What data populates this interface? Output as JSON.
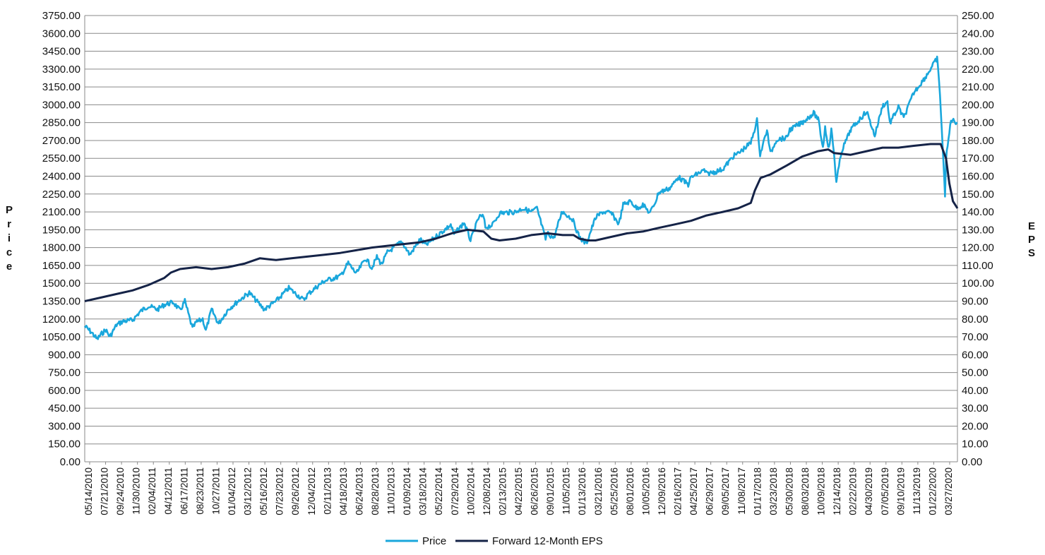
{
  "chart_data": {
    "type": "line",
    "title": "",
    "y_left": {
      "label_letters": [
        "P",
        "r",
        "i",
        "c",
        "e"
      ],
      "ylim": [
        0,
        3750
      ],
      "step": 150,
      "ticks": [
        "0.00",
        "150.00",
        "300.00",
        "450.00",
        "600.00",
        "750.00",
        "900.00",
        "1050.00",
        "1200.00",
        "1350.00",
        "1500.00",
        "1650.00",
        "1800.00",
        "1950.00",
        "2100.00",
        "2250.00",
        "2400.00",
        "2550.00",
        "2700.00",
        "2850.00",
        "3000.00",
        "3150.00",
        "3300.00",
        "3450.00",
        "3600.00",
        "3750.00"
      ]
    },
    "y_right": {
      "label_letters": [
        "E",
        "P",
        "S"
      ],
      "ylim": [
        0,
        250
      ],
      "step": 10,
      "ticks": [
        "0.00",
        "10.00",
        "20.00",
        "30.00",
        "40.00",
        "50.00",
        "60.00",
        "70.00",
        "80.00",
        "90.00",
        "100.00",
        "110.00",
        "120.00",
        "130.00",
        "140.00",
        "150.00",
        "160.00",
        "170.00",
        "180.00",
        "190.00",
        "200.00",
        "210.00",
        "220.00",
        "230.00",
        "240.00",
        "250.00"
      ]
    },
    "x_ticks": [
      "05/14/2010",
      "07/21/2010",
      "09/24/2010",
      "11/30/2010",
      "02/04/2011",
      "04/12/2011",
      "06/17/2011",
      "08/23/2011",
      "10/27/2011",
      "01/04/2012",
      "03/12/2012",
      "05/16/2012",
      "07/23/2012",
      "09/26/2012",
      "12/04/2012",
      "02/11/2013",
      "04/18/2013",
      "06/24/2013",
      "08/28/2013",
      "11/01/2013",
      "01/09/2014",
      "03/18/2014",
      "05/22/2014",
      "07/29/2014",
      "10/02/2014",
      "12/08/2014",
      "02/13/2015",
      "04/22/2015",
      "06/26/2015",
      "09/01/2015",
      "11/05/2015",
      "01/13/2016",
      "03/21/2016",
      "05/25/2016",
      "08/01/2016",
      "10/05/2016",
      "12/09/2016",
      "02/16/2017",
      "04/25/2017",
      "06/29/2017",
      "09/05/2017",
      "11/08/2017",
      "01/17/2018",
      "03/23/2018",
      "05/30/2018",
      "08/03/2018",
      "10/09/2018",
      "12/14/2018",
      "02/22/2019",
      "04/30/2019",
      "07/05/2019",
      "09/10/2019",
      "11/13/2019",
      "01/22/2020",
      "03/27/2020"
    ],
    "x_range": [
      "05/14/2010",
      "05/14/2020"
    ],
    "grid": true,
    "legend_position": "bottom-center",
    "series": [
      {
        "name": "Price",
        "axis": "left",
        "color": "#1aa7dc",
        "points": [
          [
            "05/14/2010",
            1140
          ],
          [
            "06/10/2010",
            1090
          ],
          [
            "07/05/2010",
            1030
          ],
          [
            "07/21/2010",
            1070
          ],
          [
            "08/10/2010",
            1110
          ],
          [
            "08/27/2010",
            1050
          ],
          [
            "09/24/2010",
            1150
          ],
          [
            "10/20/2010",
            1180
          ],
          [
            "11/30/2010",
            1190
          ],
          [
            "12/31/2010",
            1260
          ],
          [
            "02/04/2011",
            1310
          ],
          [
            "03/15/2011",
            1280
          ],
          [
            "04/12/2011",
            1320
          ],
          [
            "05/20/2011",
            1340
          ],
          [
            "06/17/2011",
            1270
          ],
          [
            "07/07/2011",
            1350
          ],
          [
            "08/08/2011",
            1120
          ],
          [
            "08/23/2011",
            1170
          ],
          [
            "09/20/2011",
            1200
          ],
          [
            "10/03/2011",
            1100
          ],
          [
            "10/27/2011",
            1280
          ],
          [
            "11/25/2011",
            1160
          ],
          [
            "01/04/2012",
            1280
          ],
          [
            "02/15/2012",
            1350
          ],
          [
            "03/12/2012",
            1390
          ],
          [
            "04/02/2012",
            1420
          ],
          [
            "05/16/2012",
            1320
          ],
          [
            "06/04/2012",
            1280
          ],
          [
            "07/23/2012",
            1350
          ],
          [
            "09/14/2012",
            1460
          ],
          [
            "09/26/2012",
            1440
          ],
          [
            "11/15/2012",
            1360
          ],
          [
            "12/04/2012",
            1410
          ],
          [
            "01/15/2013",
            1480
          ],
          [
            "02/11/2013",
            1520
          ],
          [
            "04/18/2013",
            1560
          ],
          [
            "05/21/2013",
            1670
          ],
          [
            "06/24/2013",
            1580
          ],
          [
            "08/02/2013",
            1710
          ],
          [
            "08/28/2013",
            1630
          ],
          [
            "09/18/2013",
            1720
          ],
          [
            "10/08/2013",
            1660
          ],
          [
            "11/01/2013",
            1760
          ],
          [
            "12/31/2013",
            1850
          ],
          [
            "02/03/2014",
            1740
          ],
          [
            "03/18/2014",
            1870
          ],
          [
            "04/11/2014",
            1820
          ],
          [
            "05/22/2014",
            1890
          ],
          [
            "07/24/2014",
            1990
          ],
          [
            "08/07/2014",
            1910
          ],
          [
            "09/18/2014",
            2010
          ],
          [
            "10/15/2014",
            1860
          ],
          [
            "11/20/2014",
            2060
          ],
          [
            "12/08/2014",
            2060
          ],
          [
            "12/16/2014",
            1970
          ],
          [
            "01/15/2015",
            1990
          ],
          [
            "02/13/2015",
            2090
          ],
          [
            "04/22/2015",
            2100
          ],
          [
            "05/21/2015",
            2130
          ],
          [
            "06/26/2015",
            2100
          ],
          [
            "07/20/2015",
            2130
          ],
          [
            "08/25/2015",
            1870
          ],
          [
            "09/01/2015",
            1920
          ],
          [
            "09/29/2015",
            1880
          ],
          [
            "11/03/2015",
            2110
          ],
          [
            "11/05/2015",
            2100
          ],
          [
            "12/15/2015",
            2040
          ],
          [
            "01/13/2016",
            1890
          ],
          [
            "02/11/2016",
            1830
          ],
          [
            "03/21/2016",
            2050
          ],
          [
            "04/20/2016",
            2100
          ],
          [
            "05/25/2016",
            2090
          ],
          [
            "06/27/2016",
            2000
          ],
          [
            "07/15/2016",
            2160
          ],
          [
            "08/15/2016",
            2190
          ],
          [
            "09/09/2016",
            2130
          ],
          [
            "10/05/2016",
            2160
          ],
          [
            "11/04/2016",
            2090
          ],
          [
            "11/30/2016",
            2200
          ],
          [
            "12/09/2016",
            2260
          ],
          [
            "01/26/2017",
            2300
          ],
          [
            "02/16/2017",
            2350
          ],
          [
            "03/01/2017",
            2395
          ],
          [
            "04/13/2017",
            2330
          ],
          [
            "04/25/2017",
            2390
          ],
          [
            "06/19/2017",
            2450
          ],
          [
            "06/29/2017",
            2420
          ],
          [
            "08/10/2017",
            2440
          ],
          [
            "09/05/2017",
            2460
          ],
          [
            "10/20/2017",
            2570
          ],
          [
            "11/08/2017",
            2590
          ],
          [
            "12/31/2017",
            2680
          ],
          [
            "01/26/2018",
            2870
          ],
          [
            "02/08/2018",
            2580
          ],
          [
            "03/09/2018",
            2790
          ],
          [
            "03/23/2018",
            2590
          ],
          [
            "04/18/2018",
            2710
          ],
          [
            "05/30/2018",
            2720
          ],
          [
            "06/12/2018",
            2790
          ],
          [
            "08/03/2018",
            2850
          ],
          [
            "09/20/2018",
            2930
          ],
          [
            "10/09/2018",
            2880
          ],
          [
            "10/29/2018",
            2640
          ],
          [
            "11/07/2018",
            2810
          ],
          [
            "11/23/2018",
            2630
          ],
          [
            "12/03/2018",
            2790
          ],
          [
            "12/14/2018",
            2600
          ],
          [
            "12/24/2018",
            2350
          ],
          [
            "01/15/2019",
            2610
          ],
          [
            "02/22/2019",
            2790
          ],
          [
            "04/30/2019",
            2945
          ],
          [
            "06/03/2019",
            2740
          ],
          [
            "07/05/2019",
            2990
          ],
          [
            "07/26/2019",
            3025
          ],
          [
            "08/05/2019",
            2845
          ],
          [
            "09/10/2019",
            2980
          ],
          [
            "10/02/2019",
            2890
          ],
          [
            "11/13/2019",
            3100
          ],
          [
            "12/31/2019",
            3230
          ],
          [
            "02/19/2020",
            3390
          ],
          [
            "03/02/2020",
            3090
          ],
          [
            "03/23/2020",
            2240
          ],
          [
            "03/27/2020",
            2540
          ],
          [
            "04/17/2020",
            2875
          ],
          [
            "05/14/2020",
            2850
          ]
        ]
      },
      {
        "name": "Forward 12-Month EPS",
        "axis": "right",
        "color": "#152347",
        "points": [
          [
            "05/14/2010",
            90
          ],
          [
            "07/21/2010",
            92
          ],
          [
            "09/24/2010",
            94
          ],
          [
            "11/30/2010",
            96
          ],
          [
            "02/04/2011",
            99
          ],
          [
            "04/12/2011",
            103
          ],
          [
            "05/10/2011",
            106
          ],
          [
            "06/17/2011",
            108
          ],
          [
            "08/23/2011",
            109
          ],
          [
            "10/27/2011",
            108
          ],
          [
            "01/04/2012",
            109
          ],
          [
            "03/12/2012",
            111
          ],
          [
            "05/16/2012",
            114
          ],
          [
            "07/23/2012",
            113
          ],
          [
            "09/26/2012",
            114
          ],
          [
            "12/04/2012",
            115
          ],
          [
            "02/11/2013",
            116
          ],
          [
            "04/18/2013",
            117
          ],
          [
            "06/24/2013",
            118.5
          ],
          [
            "08/28/2013",
            120
          ],
          [
            "11/01/2013",
            121
          ],
          [
            "01/09/2014",
            122
          ],
          [
            "03/18/2014",
            123
          ],
          [
            "05/22/2014",
            125
          ],
          [
            "07/29/2014",
            128
          ],
          [
            "10/02/2014",
            130
          ],
          [
            "12/08/2014",
            129
          ],
          [
            "01/10/2015",
            125
          ],
          [
            "02/13/2015",
            124
          ],
          [
            "04/22/2015",
            125
          ],
          [
            "06/26/2015",
            127
          ],
          [
            "09/01/2015",
            128
          ],
          [
            "11/05/2015",
            127
          ],
          [
            "12/20/2015",
            127
          ],
          [
            "01/13/2016",
            125
          ],
          [
            "02/20/2016",
            124
          ],
          [
            "03/21/2016",
            124
          ],
          [
            "05/25/2016",
            126
          ],
          [
            "08/01/2016",
            128
          ],
          [
            "10/05/2016",
            129
          ],
          [
            "12/09/2016",
            131
          ],
          [
            "02/16/2017",
            133
          ],
          [
            "04/25/2017",
            135
          ],
          [
            "06/29/2017",
            138
          ],
          [
            "09/05/2017",
            140
          ],
          [
            "11/08/2017",
            142
          ],
          [
            "12/31/2017",
            145
          ],
          [
            "01/17/2018",
            152
          ],
          [
            "02/10/2018",
            159
          ],
          [
            "03/23/2018",
            161
          ],
          [
            "05/30/2018",
            166
          ],
          [
            "08/03/2018",
            171
          ],
          [
            "10/09/2018",
            174
          ],
          [
            "11/20/2018",
            175
          ],
          [
            "12/14/2018",
            173
          ],
          [
            "02/22/2019",
            172
          ],
          [
            "04/30/2019",
            174
          ],
          [
            "07/05/2019",
            176
          ],
          [
            "09/10/2019",
            176
          ],
          [
            "11/13/2019",
            177
          ],
          [
            "01/22/2020",
            178
          ],
          [
            "03/05/2020",
            178
          ],
          [
            "03/27/2020",
            170
          ],
          [
            "04/10/2020",
            156
          ],
          [
            "04/25/2020",
            146
          ],
          [
            "05/14/2020",
            142
          ]
        ]
      }
    ]
  }
}
